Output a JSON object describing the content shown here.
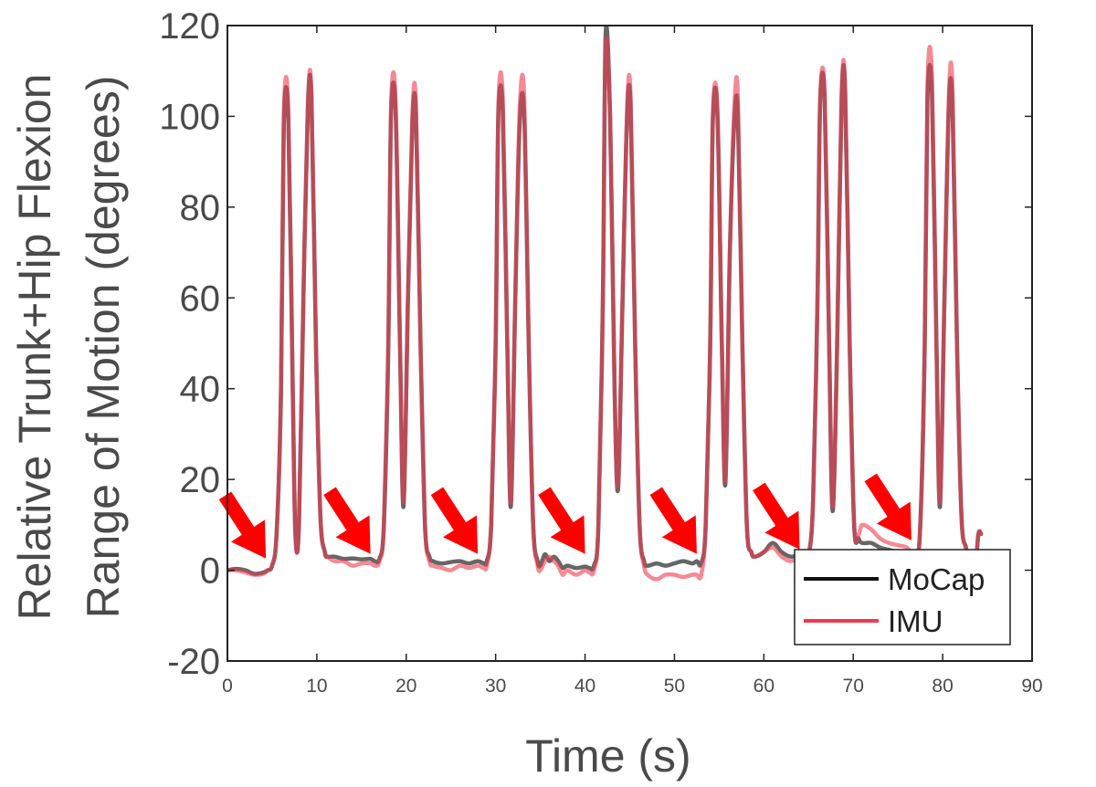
{
  "chart_data": {
    "type": "line",
    "title": "",
    "xlabel": "Time (s)",
    "ylabel_line1": "Relative Trunk+Hip Flexion",
    "ylabel_line2": "Range of Motion (degrees)",
    "xlim": [
      0,
      90
    ],
    "ylim": [
      -20,
      120
    ],
    "xticks": [
      0,
      10,
      20,
      30,
      40,
      50,
      60,
      70,
      80,
      90
    ],
    "yticks": [
      -20,
      0,
      20,
      40,
      60,
      80,
      100,
      120
    ],
    "grid": false,
    "legend": {
      "placement": "bottom-right",
      "entries": [
        "MoCap",
        "IMU"
      ]
    },
    "colors": {
      "MoCap": "#555555",
      "IMU": "#ee3b4e",
      "arrow": "#ff0000",
      "axis": "#222222"
    },
    "series": [
      {
        "name": "MoCap",
        "x": [
          0,
          1,
          2,
          3,
          4,
          4.5,
          5,
          5.5,
          6,
          6.3,
          6.8,
          7.3,
          7.6,
          8,
          8.5,
          9,
          9.4,
          9.9,
          10.4,
          10.9,
          11.2,
          12,
          13,
          14,
          15,
          16,
          16.5,
          17,
          17.5,
          18,
          18.3,
          18.8,
          19.3,
          19.7,
          20.2,
          20.7,
          21.1,
          21.6,
          22.1,
          22.6,
          23,
          24,
          25,
          26,
          27,
          28,
          28.7,
          29,
          29.5,
          30,
          30.3,
          30.8,
          31.3,
          31.7,
          32.2,
          32.7,
          33.2,
          33.7,
          34.2,
          34.7,
          35,
          35.5,
          36,
          36.5,
          37,
          37.5,
          38,
          39,
          40,
          40.5,
          41,
          41.5,
          42,
          42.3,
          42.8,
          43.3,
          43.7,
          44.2,
          44.7,
          45.1,
          45.6,
          46.1,
          46.6,
          47,
          48,
          49,
          50,
          51,
          52,
          52.5,
          53,
          53.5,
          54,
          54.3,
          54.8,
          55.3,
          55.7,
          56.2,
          56.7,
          57.1,
          57.6,
          58.1,
          58.6,
          59,
          60,
          61,
          62,
          63,
          64,
          64.5,
          65,
          65.5,
          66,
          66.3,
          66.8,
          67.3,
          67.7,
          68.2,
          68.7,
          69.1,
          69.6,
          70.1,
          70.6,
          71,
          72,
          73,
          74,
          75,
          76,
          77,
          77.5,
          78,
          78.3,
          78.8,
          79.3,
          79.7,
          80.2,
          80.7,
          81.1,
          81.6,
          82.1,
          82.6,
          83,
          83.6,
          84,
          84.3
        ],
        "y": [
          0,
          0.3,
          0,
          -0.8,
          -0.5,
          0,
          1,
          8,
          40,
          98,
          100,
          40,
          8,
          10,
          60,
          102,
          104,
          50,
          12,
          4,
          3,
          3,
          2.5,
          2.6,
          2.4,
          2.5,
          2,
          2.5,
          10,
          50,
          100,
          102,
          50,
          14,
          60,
          99,
          100,
          50,
          10,
          3,
          2,
          1.5,
          1.8,
          2,
          1.5,
          2,
          1.5,
          2,
          10,
          50,
          100,
          101,
          50,
          14,
          60,
          99,
          100,
          50,
          10,
          2,
          1,
          3.5,
          2,
          3,
          2,
          0.5,
          1,
          0.5,
          0.8,
          0.5,
          1,
          10,
          60,
          118,
          100,
          40,
          18,
          60,
          100,
          102,
          50,
          10,
          2,
          1,
          1.5,
          1,
          1.5,
          2,
          1.5,
          2,
          1.5,
          10,
          50,
          99,
          101,
          50,
          19,
          70,
          99,
          100,
          50,
          10,
          4,
          3,
          4,
          6,
          4,
          3,
          3.5,
          4,
          3.5,
          15,
          60,
          103,
          104,
          50,
          13,
          50,
          104,
          105,
          50,
          10,
          7,
          6,
          6,
          5,
          4.5,
          4,
          4,
          3,
          10,
          50,
          104,
          105,
          50,
          14,
          60,
          103,
          102,
          50,
          12,
          5,
          2,
          0,
          8,
          8
        ]
      },
      {
        "name": "IMU",
        "x": [
          0,
          1,
          2,
          3,
          4,
          4.5,
          5,
          5.5,
          6,
          6.3,
          6.8,
          7.3,
          7.6,
          8,
          8.5,
          9,
          9.4,
          9.9,
          10.4,
          10.9,
          11.2,
          12,
          13,
          14,
          15,
          16,
          16.5,
          17,
          17.5,
          18,
          18.3,
          18.8,
          19.3,
          19.7,
          20.2,
          20.7,
          21.1,
          21.6,
          22.1,
          22.6,
          23,
          24,
          25,
          26,
          27,
          28,
          28.7,
          29,
          29.5,
          30,
          30.3,
          30.8,
          31.3,
          31.7,
          32.2,
          32.7,
          33.2,
          33.7,
          34.2,
          34.7,
          35,
          35.5,
          36,
          36.5,
          37,
          37.5,
          38,
          39,
          40,
          40.5,
          41,
          41.5,
          42,
          42.3,
          42.8,
          43.3,
          43.7,
          44.2,
          44.7,
          45.1,
          45.6,
          46.1,
          46.6,
          47,
          48,
          49,
          50,
          51,
          52,
          52.5,
          53,
          53.5,
          54,
          54.3,
          54.8,
          55.3,
          55.7,
          56.2,
          56.7,
          57.1,
          57.6,
          58.1,
          58.6,
          59,
          60,
          61,
          62,
          63,
          64,
          64.5,
          65,
          65.5,
          66,
          66.3,
          66.8,
          67.3,
          67.7,
          68.2,
          68.7,
          69.1,
          69.6,
          70.1,
          70.6,
          71,
          72,
          73,
          74,
          75,
          76,
          77,
          77.5,
          78,
          78.3,
          78.8,
          79.3,
          79.7,
          80.2,
          80.7,
          81.1,
          81.6,
          82.1,
          82.6,
          83,
          83.6,
          84,
          84.3
        ],
        "y": [
          0,
          0,
          -0.5,
          -1,
          -0.8,
          0,
          1,
          8,
          40,
          100,
          102,
          40,
          8,
          10,
          60,
          103,
          105,
          50,
          12,
          4,
          3,
          2,
          2,
          1,
          1.5,
          1.5,
          1,
          2,
          10,
          50,
          102,
          104,
          50,
          15,
          60,
          101,
          102,
          50,
          10,
          2,
          1,
          0.5,
          0,
          1,
          0.5,
          1,
          0.5,
          1,
          10,
          50,
          102,
          104,
          50,
          15,
          60,
          102,
          104,
          50,
          10,
          1,
          0,
          2,
          3,
          2,
          1,
          -1,
          0,
          -1,
          0,
          -0.5,
          0,
          10,
          60,
          115,
          100,
          40,
          19,
          60,
          102,
          104,
          50,
          10,
          1,
          -1,
          -2,
          -1,
          -1,
          -1.5,
          -1,
          -1,
          -1,
          10,
          50,
          100,
          102,
          50,
          20,
          70,
          102,
          104,
          50,
          10,
          4,
          3,
          4,
          5,
          3,
          2,
          3,
          3,
          3,
          15,
          60,
          104,
          105,
          50,
          14,
          50,
          105,
          106,
          50,
          10,
          8,
          10,
          9,
          7,
          6,
          5.5,
          5,
          3,
          10,
          50,
          107,
          109,
          50,
          15,
          60,
          105,
          106,
          50,
          12,
          5,
          2,
          0,
          8,
          8
        ]
      }
    ],
    "annotations": {
      "arrows_at_x": [
        4.3,
        16,
        28,
        40,
        52.5,
        64,
        76.5
      ],
      "arrows_at_y": [
        1,
        2,
        2,
        2,
        2,
        3,
        5
      ]
    }
  }
}
